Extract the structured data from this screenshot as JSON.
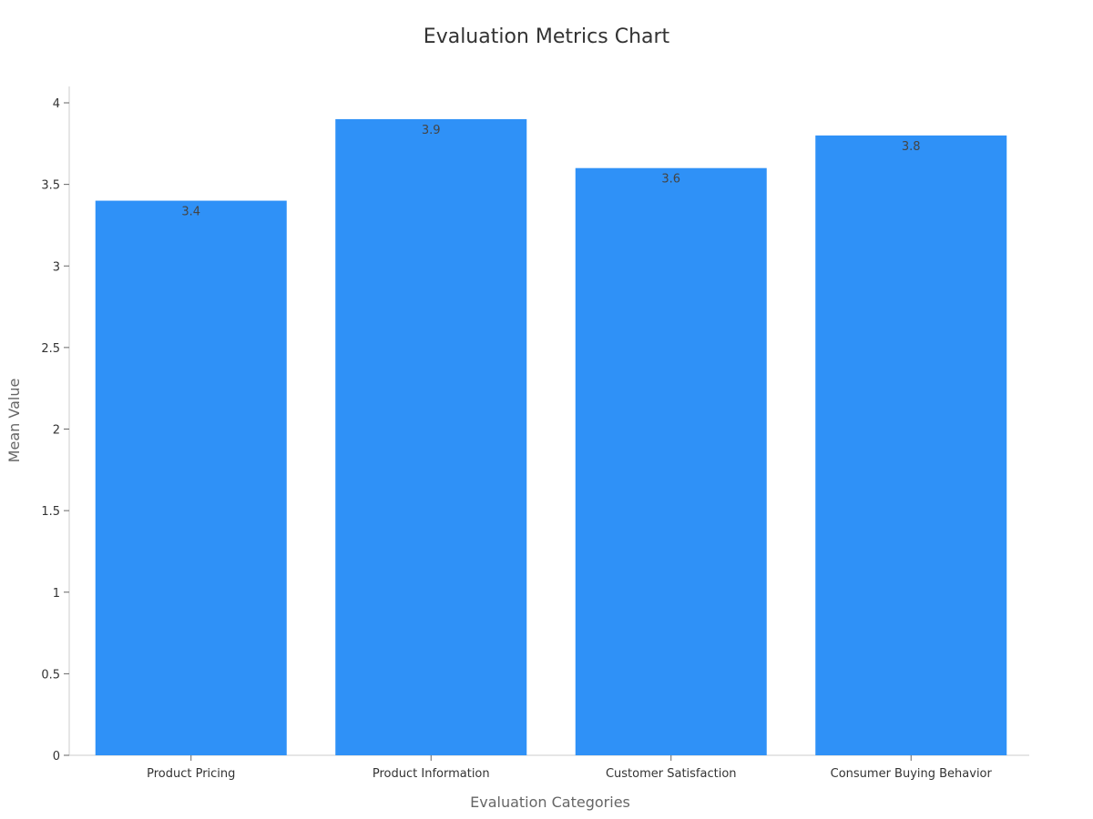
{
  "chart_data": {
    "type": "bar",
    "title": "Evaluation Metrics Chart",
    "xlabel": "Evaluation Categories",
    "ylabel": "Mean Value",
    "categories": [
      "Product Pricing",
      "Product Information",
      "Customer Satisfaction",
      "Consumer Buying Behavior"
    ],
    "values": [
      3.4,
      3.9,
      3.6,
      3.8
    ],
    "data_labels": [
      "3.4",
      "3.9",
      "3.6",
      "3.8"
    ],
    "ylim": [
      0,
      4
    ],
    "yticks": [
      "0",
      "0.5",
      "1",
      "1.5",
      "2",
      "2.5",
      "3",
      "3.5",
      "4"
    ],
    "grid": false,
    "legend": "none",
    "bar_color": "#2f91f7"
  }
}
